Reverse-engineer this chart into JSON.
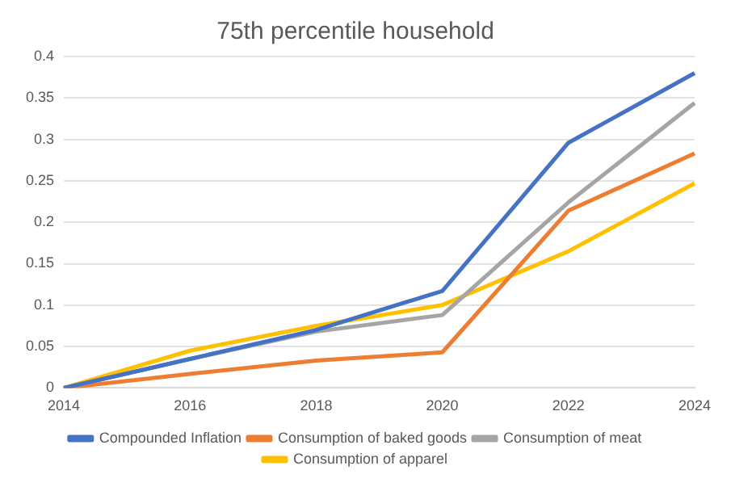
{
  "chart_data": {
    "type": "line",
    "title": "75th percentile household",
    "categories": [
      "2014",
      "2016",
      "2018",
      "2020",
      "2022",
      "2024"
    ],
    "series": [
      {
        "name": "Compounded Inflation",
        "color": "#4472c4",
        "values": [
          0,
          0.035,
          0.07,
          0.117,
          0.296,
          0.38
        ]
      },
      {
        "name": "Consumption of baked goods",
        "color": "#ed7d31",
        "values": [
          0,
          0.017,
          0.033,
          0.043,
          0.214,
          0.283
        ]
      },
      {
        "name": "Consumption of meat",
        "color": "#a5a5a5",
        "values": [
          0,
          0.035,
          0.068,
          0.088,
          0.224,
          0.344
        ]
      },
      {
        "name": "Consumption of apparel",
        "color": "#ffc000",
        "values": [
          0,
          0.045,
          0.075,
          0.1,
          0.165,
          0.247
        ]
      }
    ],
    "ylim": [
      0,
      0.4
    ],
    "yticks": [
      0,
      0.05,
      0.1,
      0.15,
      0.2,
      0.25,
      0.3,
      0.35,
      0.4
    ],
    "grid": "y",
    "legend": "bottom",
    "marker": "none",
    "line_style": "solid"
  }
}
